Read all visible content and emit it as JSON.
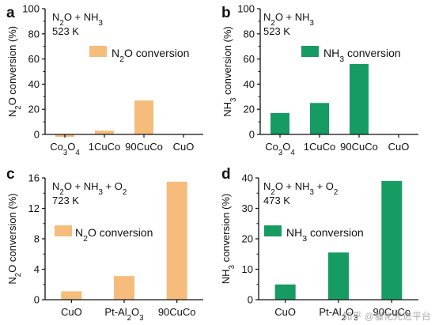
{
  "colors": {
    "orange": "#F6BC7C",
    "green": "#169B62",
    "axis": "#111111"
  },
  "chart_data": [
    {
      "id": "a",
      "type": "bar",
      "panel_label": "a",
      "annotation": [
        "N₂O + NH₃",
        "523 K"
      ],
      "ylabel": "N₂O conversion (%)",
      "categories": [
        "Co₃O₄",
        "1CuCo",
        "90CuCo",
        "CuO"
      ],
      "values": [
        -2,
        3,
        27,
        0
      ],
      "series_name": "N₂O conversion",
      "color": "orange",
      "ylim": [
        0,
        100
      ],
      "yticks": [
        0,
        20,
        40,
        60,
        80,
        100
      ],
      "legend": "top-right"
    },
    {
      "id": "b",
      "type": "bar",
      "panel_label": "b",
      "annotation": [
        "N₂O + NH₃",
        "523 K"
      ],
      "ylabel": "NH₃ conversion (%)",
      "categories": [
        "Co₃O₄",
        "1CuCo",
        "90CuCo",
        "CuO"
      ],
      "values": [
        17,
        25,
        56,
        0
      ],
      "series_name": "NH₃ conversion",
      "color": "green",
      "ylim": [
        0,
        100
      ],
      "yticks": [
        0,
        20,
        40,
        60,
        80,
        100
      ],
      "legend": "top-right"
    },
    {
      "id": "c",
      "type": "bar",
      "panel_label": "c",
      "annotation": [
        "N₂O + NH₃ + O₂",
        "723 K"
      ],
      "ylabel": "N₂O conversion (%)",
      "categories": [
        "CuO",
        "Pt-Al₂O₃",
        "90CuCo"
      ],
      "values": [
        1.1,
        3.1,
        15.5
      ],
      "series_name": "N₂O conversion",
      "color": "orange",
      "ylim": [
        0,
        16
      ],
      "yticks": [
        0,
        4,
        8,
        12,
        16
      ],
      "legend": "middle-left"
    },
    {
      "id": "d",
      "type": "bar",
      "panel_label": "d",
      "annotation": [
        "N₂O + NH₃ + O₂",
        "473 K"
      ],
      "ylabel": "NH₃ conversion (%)",
      "categories": [
        "CuO",
        "Pt-Al₂O₃",
        "90CuCo"
      ],
      "values": [
        5,
        15.5,
        39
      ],
      "series_name": "NH₃ conversion",
      "color": "green",
      "ylim": [
        0,
        40
      ],
      "yticks": [
        0,
        10,
        20,
        30,
        40
      ],
      "legend": "middle-left"
    }
  ],
  "watermark": "知乎 @催化先进平台"
}
